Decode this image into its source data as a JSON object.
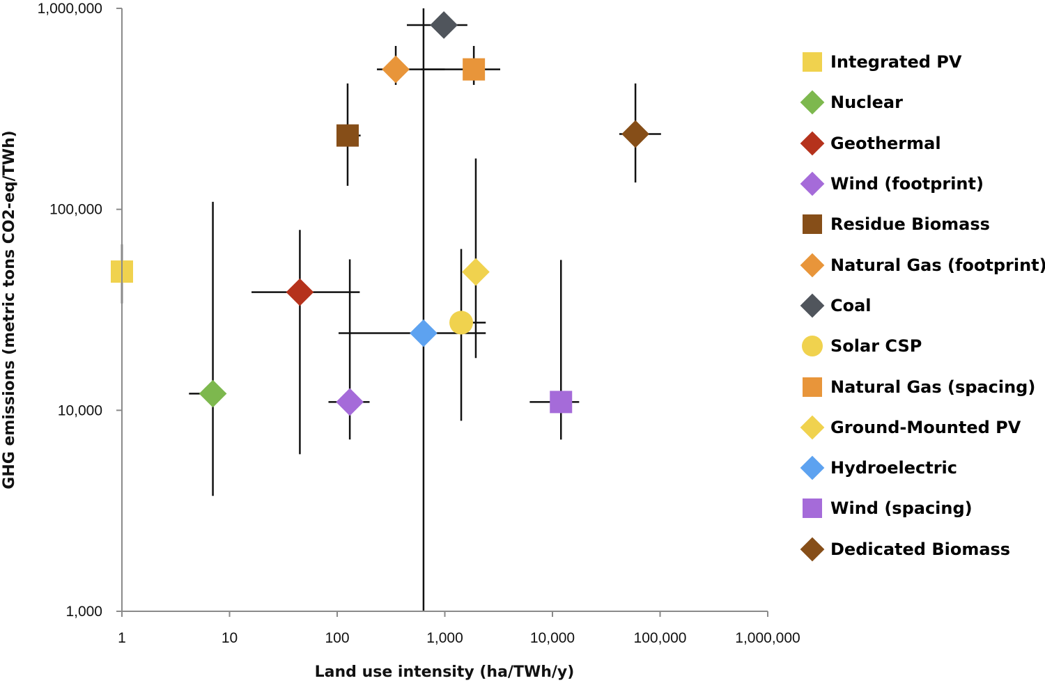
{
  "chart_data": {
    "type": "scatter",
    "title": "",
    "xlabel": "Land use intensity (ha/TWh/y)",
    "ylabel": "GHG emissions (metric tons CO2-eq/TWh)",
    "xscale": "log",
    "yscale": "log",
    "xlim": [
      1,
      1000000
    ],
    "ylim": [
      1000,
      1000000
    ],
    "x_ticks": [
      1,
      10,
      100,
      1000,
      10000,
      100000,
      1000000
    ],
    "x_tick_labels": [
      "1",
      "10",
      "100",
      "1,000",
      "10,000",
      "100,000",
      "1,000,000"
    ],
    "y_ticks": [
      1000,
      10000,
      100000,
      1000000
    ],
    "y_tick_labels": [
      "1,000",
      "10,000",
      "100,000",
      "1,000,000"
    ],
    "grid": false,
    "legend_position": "right",
    "series": [
      {
        "name": "Integrated PV",
        "marker": "square",
        "color": "#F0D24E",
        "x": 1,
        "y": 49000,
        "x_err": null,
        "y_err": [
          34000,
          67000
        ]
      },
      {
        "name": "Nuclear",
        "marker": "diamond",
        "color": "#7DB84E",
        "x": 7,
        "y": 12100,
        "x_err": [
          4.2,
          7
        ],
        "y_err": [
          3750,
          109000
        ]
      },
      {
        "name": "Geothermal",
        "marker": "diamond",
        "color": "#B5321C",
        "x": 45,
        "y": 38700,
        "x_err": [
          16,
          162
        ],
        "y_err": [
          6050,
          79000
        ]
      },
      {
        "name": "Wind (footprint)",
        "marker": "diamond",
        "color": "#A56BD9",
        "x": 131,
        "y": 11000,
        "x_err": [
          83,
          200
        ],
        "y_err": [
          7160,
          56400
        ]
      },
      {
        "name": "Residue Biomass",
        "marker": "square",
        "color": "#864E18",
        "x": 125,
        "y": 233000,
        "x_err": [
          125,
          165
        ],
        "y_err": [
          131000,
          423000
        ]
      },
      {
        "name": "Natural Gas (footprint)",
        "marker": "diamond",
        "color": "#E8953A",
        "x": 350,
        "y": 497000,
        "x_err": [
          234,
          1000
        ],
        "y_err": [
          416000,
          650000
        ]
      },
      {
        "name": "Coal",
        "marker": "diamond",
        "color": "#50555C",
        "x": 980,
        "y": 826000,
        "x_err": [
          444,
          1620
        ],
        "y_err": null
      },
      {
        "name": "Solar CSP",
        "marker": "circle",
        "color": "#F0D24E",
        "x": 1420,
        "y": 27300,
        "x_err": [
          1420,
          2400
        ],
        "y_err": [
          8870,
          63500
        ]
      },
      {
        "name": "Natural Gas (spacing)",
        "marker": "square",
        "color": "#E8953A",
        "x": 1860,
        "y": 497000,
        "x_err": [
          600,
          3270
        ],
        "y_err": [
          416000,
          650000
        ]
      },
      {
        "name": "Ground-Mounted PV",
        "marker": "diamond",
        "color": "#F0D24E",
        "x": 1940,
        "y": 48800,
        "x_err": null,
        "y_err": [
          18200,
          179000
        ]
      },
      {
        "name": "Hydroelectric",
        "marker": "diamond",
        "color": "#5DA2F0",
        "x": 634,
        "y": 24200,
        "x_err": [
          103,
          2400
        ],
        "y_err": [
          1000,
          1000000
        ]
      },
      {
        "name": "Wind (spacing)",
        "marker": "square",
        "color": "#A56BD9",
        "x": 12000,
        "y": 11000,
        "x_err": [
          6150,
          17700
        ],
        "y_err": [
          7150,
          56000
        ]
      },
      {
        "name": "Dedicated Biomass",
        "marker": "diamond",
        "color": "#864E18",
        "x": 59000,
        "y": 237000,
        "x_err": [
          41800,
          102000
        ],
        "y_err": [
          136000,
          423000
        ]
      }
    ]
  }
}
